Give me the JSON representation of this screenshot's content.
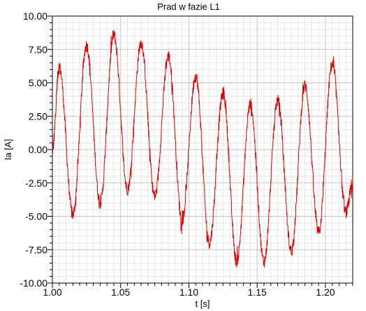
{
  "chart_data": {
    "type": "line",
    "title": "Prad w fazie L1",
    "xlabel": "t [s]",
    "ylabel": "Ia [A]",
    "xlim": [
      1.0,
      1.22
    ],
    "ylim": [
      -10.0,
      10.0
    ],
    "grid": true,
    "x_tick_labels": [
      "1.00",
      "1.05",
      "1.10",
      "1.15",
      "1.20"
    ],
    "x_ticks": [
      1.0,
      1.05,
      1.1,
      1.15,
      1.2
    ],
    "y_tick_labels": [
      "10.00",
      "7.50",
      "5.00",
      "2.50",
      "0.00",
      "-2.50",
      "-5.00",
      "-7.50",
      "-10.00"
    ],
    "y_ticks": [
      10.0,
      7.5,
      5.0,
      2.5,
      0.0,
      -2.5,
      -5.0,
      -7.5,
      -10.0
    ],
    "series": [
      {
        "color": "#e00000",
        "peaks": [
          {
            "x": 1.0,
            "y": 0.0
          },
          {
            "x": 1.005,
            "y": 6.2
          },
          {
            "x": 1.015,
            "y": -4.9
          },
          {
            "x": 1.025,
            "y": 7.8
          },
          {
            "x": 1.035,
            "y": -4.0
          },
          {
            "x": 1.045,
            "y": 8.6
          },
          {
            "x": 1.055,
            "y": -3.0
          },
          {
            "x": 1.065,
            "y": 8.0
          },
          {
            "x": 1.075,
            "y": -3.5
          },
          {
            "x": 1.085,
            "y": 7.0
          },
          {
            "x": 1.095,
            "y": -5.3
          },
          {
            "x": 1.105,
            "y": 5.5
          },
          {
            "x": 1.115,
            "y": -7.0
          },
          {
            "x": 1.125,
            "y": 4.2
          },
          {
            "x": 1.135,
            "y": -8.4
          },
          {
            "x": 1.145,
            "y": 3.4
          },
          {
            "x": 1.155,
            "y": -8.4
          },
          {
            "x": 1.165,
            "y": 3.7
          },
          {
            "x": 1.175,
            "y": -7.6
          },
          {
            "x": 1.185,
            "y": 4.8
          },
          {
            "x": 1.195,
            "y": -6.2
          },
          {
            "x": 1.205,
            "y": 6.4
          },
          {
            "x": 1.215,
            "y": -4.7
          },
          {
            "x": 1.22,
            "y": -2.5
          }
        ]
      }
    ]
  }
}
